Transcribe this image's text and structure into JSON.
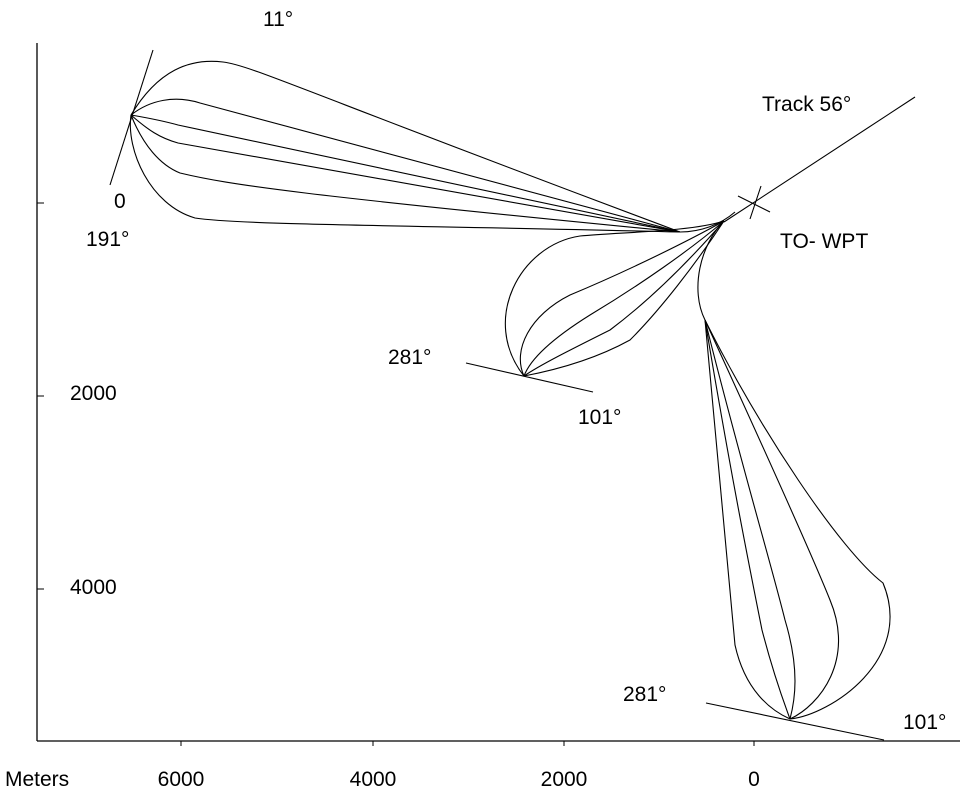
{
  "x_axis": {
    "unit_label": "Meters",
    "tick_labels": [
      "6000",
      "4000",
      "2000",
      "0"
    ]
  },
  "y_axis": {
    "tick_labels": [
      "0",
      "2000",
      "4000"
    ]
  },
  "annotations": {
    "track": "Track 56°",
    "waypoint": "TO- WPT",
    "left_course_top": "11°",
    "left_course_bottom": "191°",
    "middle_course_left": "281°",
    "middle_course_right": "101°",
    "lower_course_left": "281°",
    "lower_course_right": "101°"
  },
  "colors": {
    "stroke": "#000000",
    "background": "#ffffff"
  }
}
